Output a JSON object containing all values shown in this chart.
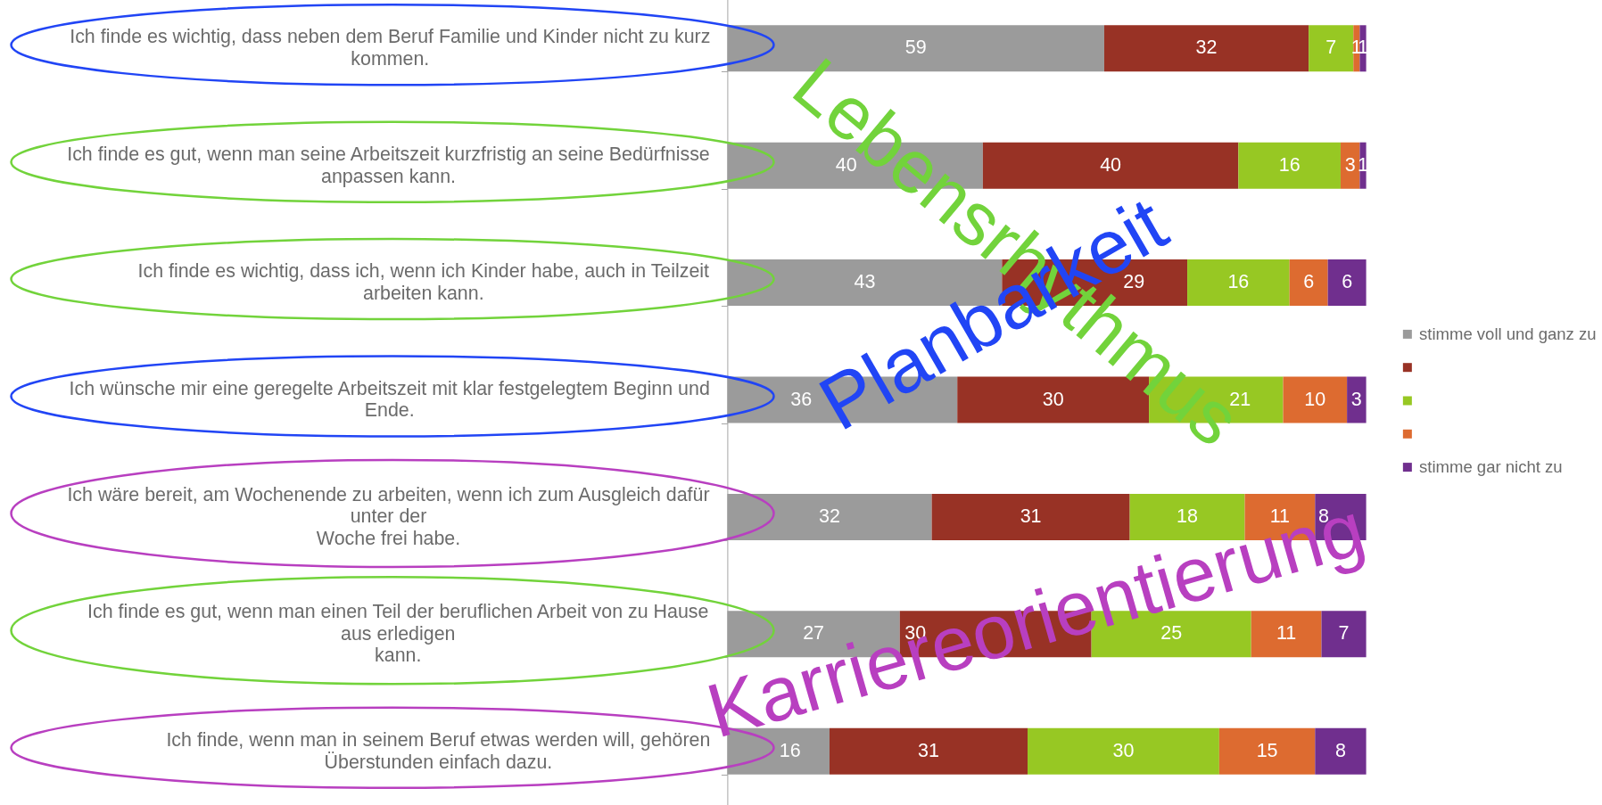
{
  "chart_data": {
    "type": "bar",
    "orientation": "horizontal",
    "stacked": true,
    "categories": [
      "Ich finde es wichtig, dass neben dem Beruf Familie und Kinder nicht zu kurz kommen.",
      "Ich finde es gut, wenn man seine Arbeitszeit kurzfristig an seine Bedürfnisse anpassen kann.",
      "Ich finde es wichtig, dass ich, wenn ich Kinder habe, auch in Teilzeit arbeiten kann.",
      "Ich wünsche mir eine geregelte Arbeitszeit mit klar festgelegtem Beginn und Ende.",
      "Ich wäre bereit, am Wochenende zu arbeiten, wenn ich zum Ausgleich dafür unter der\nWoche frei habe.",
      "Ich finde es gut, wenn man einen Teil der beruflichen Arbeit von zu Hause aus erledigen\nkann.",
      "Ich finde, wenn man in seinem Beruf etwas werden will, gehören Überstunden einfach dazu."
    ],
    "series": [
      {
        "name": "stimme voll und ganz zu",
        "color": "#9b9b9b",
        "values": [
          59,
          40,
          43,
          36,
          32,
          27,
          16
        ]
      },
      {
        "color": "#983225",
        "values": [
          32,
          40,
          29,
          30,
          31,
          30,
          31
        ]
      },
      {
        "color": "#97c823",
        "values": [
          7,
          16,
          16,
          21,
          18,
          25,
          30
        ]
      },
      {
        "color": "#dd6b30",
        "values": [
          1,
          3,
          6,
          10,
          11,
          11,
          15
        ]
      },
      {
        "name": "stimme gar nicht zu",
        "color": "#702f8e",
        "values": [
          1,
          1,
          6,
          3,
          8,
          7,
          8
        ]
      }
    ],
    "xlim": [
      0,
      100
    ],
    "data_labels": true,
    "tick_labels": "y",
    "legend": "right",
    "annotations": [
      "Lebensrhythmus",
      "Planbarkeit",
      "Karriereorientierung"
    ]
  }
}
